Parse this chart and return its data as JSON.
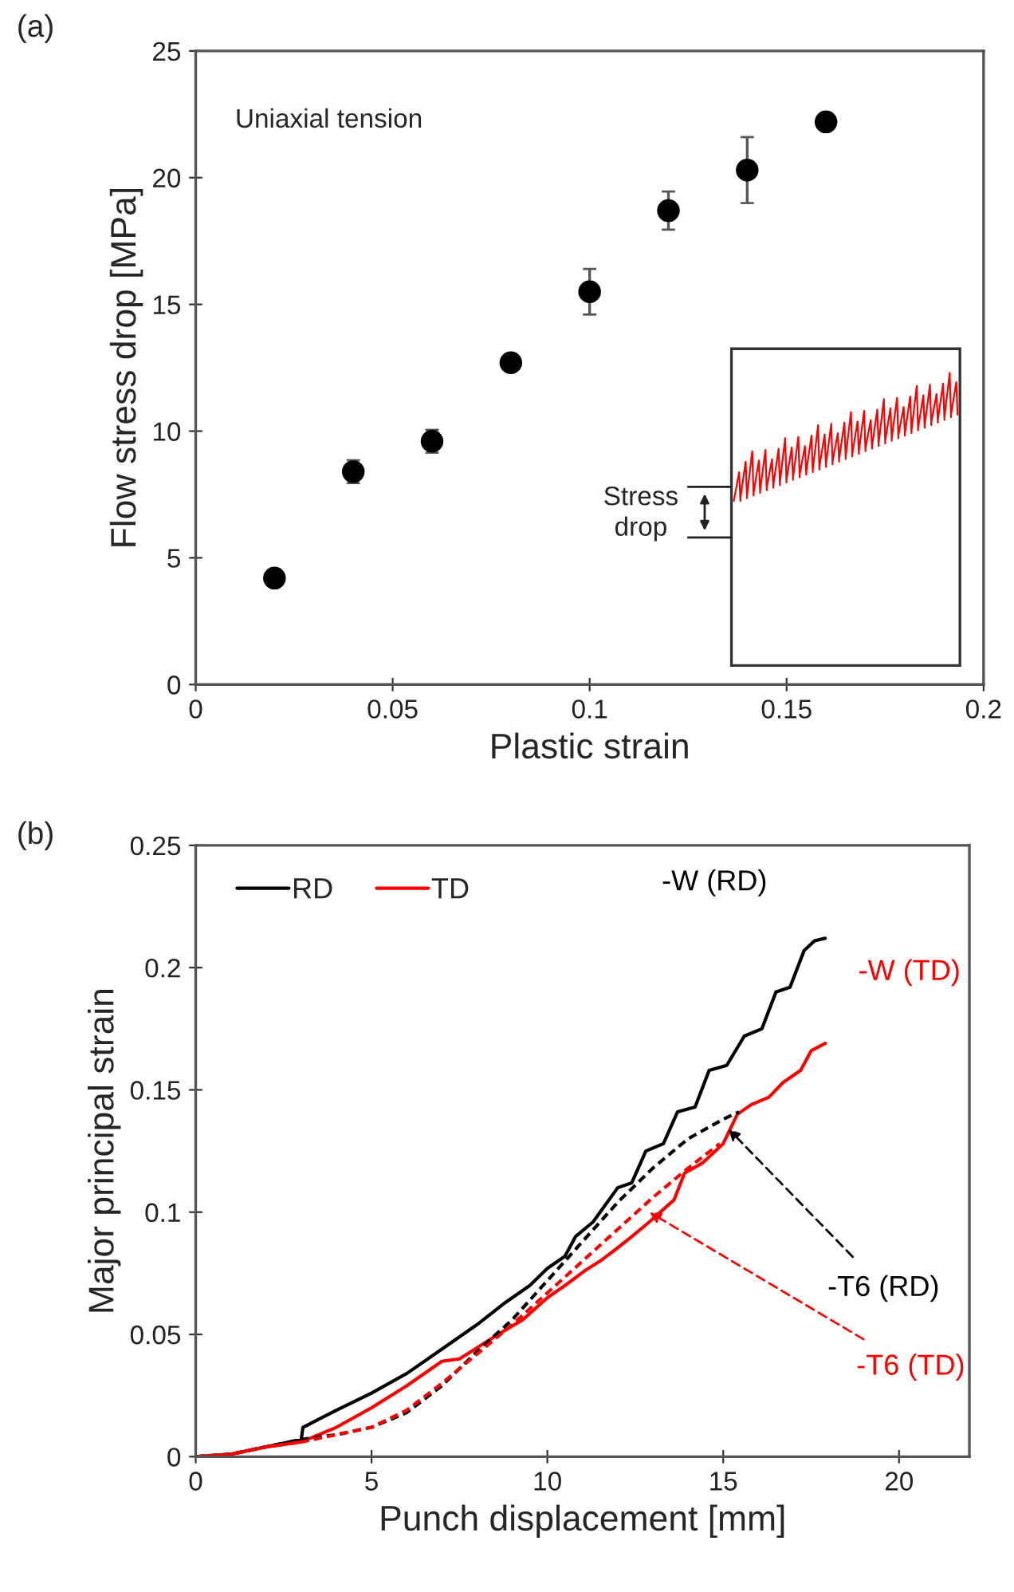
{
  "chart_data": [
    {
      "type": "scatter",
      "xlabel": "Plastic strain",
      "ylabel": "Flow stress drop [MPa]",
      "x": [
        0.02,
        0.04,
        0.06,
        0.08,
        0.1,
        0.12,
        0.14,
        0.16
      ],
      "values": [
        4.2,
        8.4,
        9.6,
        12.7,
        15.5,
        18.7,
        20.3,
        22.2
      ],
      "errors": [
        null,
        0.45,
        0.45,
        null,
        0.9,
        0.75,
        1.3,
        null
      ],
      "color": "#000000",
      "marker": "circle",
      "xlim": [
        0,
        0.2
      ],
      "xticks": [
        0,
        0.05,
        0.1,
        0.15,
        0.2
      ],
      "ylim": [
        0,
        25
      ],
      "yticks": [
        0,
        5,
        10,
        15,
        20,
        25
      ],
      "annotations": [
        "(a)",
        "Uniaxial tension",
        "Stress\ndrop"
      ]
    },
    {
      "type": "line",
      "xlabel": "Punch displacement [mm]",
      "ylabel": "Major principal strain",
      "xlim": [
        0,
        22
      ],
      "xticks": [
        0,
        5,
        10,
        15,
        20
      ],
      "ylim": [
        0,
        0.25
      ],
      "yticks": [
        0,
        0.05,
        0.1,
        0.15,
        0.2,
        0.25
      ],
      "legend": "top left",
      "series": [
        {
          "name": "RD",
          "color": "#000000",
          "line_style": "solid",
          "x": [
            0,
            1,
            2,
            3,
            3.05,
            4,
            5,
            6,
            7,
            8,
            8.8,
            9.5,
            10,
            10.5,
            10.8,
            11.3,
            11.7,
            12.0,
            12.4,
            12.8,
            13.3,
            13.7,
            14.2,
            14.6,
            15.1,
            15.6,
            16.1,
            16.5,
            16.9,
            17.3,
            17.6,
            17.9
          ],
          "values": [
            0,
            0.001,
            0.004,
            0.007,
            0.012,
            0.019,
            0.026,
            0.034,
            0.044,
            0.054,
            0.063,
            0.07,
            0.077,
            0.082,
            0.09,
            0.096,
            0.104,
            0.11,
            0.112,
            0.125,
            0.128,
            0.141,
            0.143,
            0.158,
            0.16,
            0.172,
            0.175,
            0.19,
            0.192,
            0.207,
            0.211,
            0.212
          ]
        },
        {
          "name": "TD",
          "color": "#ff0000",
          "line_style": "solid",
          "x": [
            0,
            1,
            2,
            3,
            4,
            5,
            6,
            7,
            7.5,
            8.6,
            9.3,
            10,
            10.5,
            11.06,
            11.5,
            11.96,
            12.4,
            12.9,
            13.6,
            13.9,
            14.4,
            15.0,
            15.4,
            15.8,
            16.3,
            16.7,
            17.2,
            17.5,
            17.9
          ],
          "values": [
            0,
            0.001,
            0.004,
            0.006,
            0.012,
            0.02,
            0.029,
            0.039,
            0.04,
            0.05,
            0.056,
            0.065,
            0.07,
            0.076,
            0.08,
            0.085,
            0.09,
            0.096,
            0.105,
            0.116,
            0.12,
            0.128,
            0.14,
            0.144,
            0.147,
            0.153,
            0.158,
            0.166,
            0.169
          ]
        },
        {
          "color": "#000000",
          "line_style": "dashed",
          "x": [
            0,
            1,
            2,
            3,
            4,
            5,
            6,
            7,
            8,
            9,
            10,
            11,
            12,
            13,
            14,
            15,
            15.45
          ],
          "values": [
            0,
            0.001,
            0.004,
            0.007,
            0.009,
            0.012,
            0.018,
            0.029,
            0.043,
            0.056,
            0.072,
            0.088,
            0.104,
            0.118,
            0.13,
            0.138,
            0.141
          ]
        },
        {
          "color": "#ff0000",
          "line_style": "dashed",
          "x": [
            0,
            1,
            2,
            3,
            4,
            5,
            6,
            7,
            8,
            9,
            10,
            11,
            12,
            13,
            14,
            14.9
          ],
          "values": [
            0,
            0.001,
            0.004,
            0.006,
            0.009,
            0.012,
            0.019,
            0.03,
            0.042,
            0.054,
            0.067,
            0.08,
            0.093,
            0.106,
            0.118,
            0.128
          ]
        }
      ],
      "annotations": [
        "(b)",
        {
          "text": "-W (RD)",
          "x": 17.9,
          "y": 0.212
        },
        {
          "text": "-W (TD)",
          "x": 17.9,
          "y": 0.169
        },
        {
          "text": "-T6 (RD)",
          "x": 15.15,
          "y": 0.134
        },
        {
          "text": "-T6 (TD)",
          "x": 12.9,
          "y": 0.1
        }
      ]
    }
  ]
}
